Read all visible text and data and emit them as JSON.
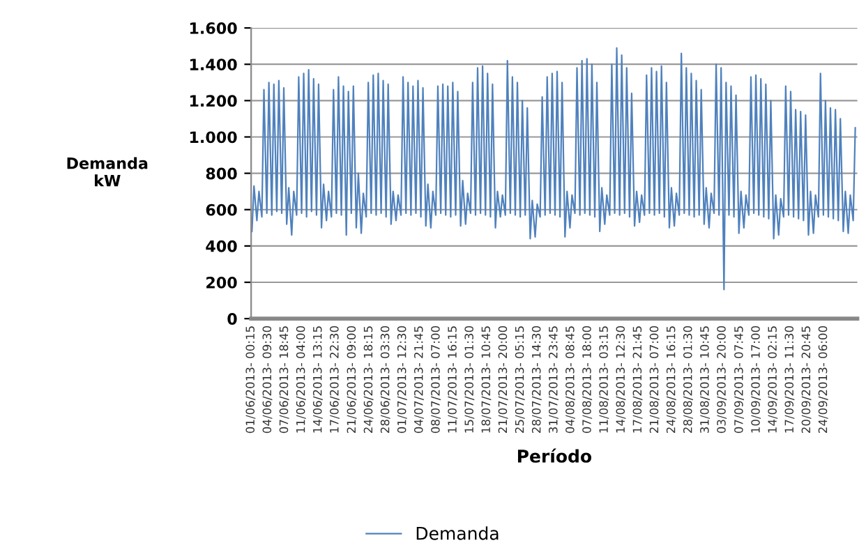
{
  "chart_data": {
    "type": "line",
    "xlabel": "Período",
    "ylabel": "Demanda\nkW",
    "xlim": [
      "2013-06-01T00:15",
      "2013-10-01T00:00"
    ],
    "ylim": [
      0,
      1600
    ],
    "yticks": [
      0,
      200,
      400,
      600,
      800,
      {
        "value": 1000,
        "label": "1.000"
      },
      {
        "value": 1200,
        "label": "1.200"
      },
      {
        "value": 1400,
        "label": "1.400"
      },
      {
        "value": 1600,
        "label": "1.600"
      }
    ],
    "xticks": [
      {
        "value": "2013-06-01T00:15",
        "label": "01/06/2013- 00:15"
      },
      {
        "value": "2013-06-04T09:30",
        "label": "04/06/2013- 09:30"
      },
      {
        "value": "2013-06-07T18:45",
        "label": "07/06/2013- 18:45"
      },
      {
        "value": "2013-06-11T04:00",
        "label": "11/06/2013- 04:00"
      },
      {
        "value": "2013-06-14T13:15",
        "label": "14/06/2013- 13:15"
      },
      {
        "value": "2013-06-17T22:30",
        "label": "17/06/2013- 22:30"
      },
      {
        "value": "2013-06-21T09:00",
        "label": "21/06/2013- 09:00"
      },
      {
        "value": "2013-06-24T18:15",
        "label": "24/06/2013- 18:15"
      },
      {
        "value": "2013-06-28T03:30",
        "label": "28/06/2013- 03:30"
      },
      {
        "value": "2013-07-01T12:30",
        "label": "01/07/2013- 12:30"
      },
      {
        "value": "2013-07-04T21:45",
        "label": "04/07/2013- 21:45"
      },
      {
        "value": "2013-07-08T07:00",
        "label": "08/07/2013- 07:00"
      },
      {
        "value": "2013-07-11T16:15",
        "label": "11/07/2013- 16:15"
      },
      {
        "value": "2013-07-15T01:30",
        "label": "15/07/2013- 01:30"
      },
      {
        "value": "2013-07-18T10:45",
        "label": "18/07/2013- 10:45"
      },
      {
        "value": "2013-07-21T20:00",
        "label": "21/07/2013- 20:00"
      },
      {
        "value": "2013-07-25T05:15",
        "label": "25/07/2013- 05:15"
      },
      {
        "value": "2013-07-28T14:30",
        "label": "28/07/2013- 14:30"
      },
      {
        "value": "2013-07-31T23:45",
        "label": "31/07/2013- 23:45"
      },
      {
        "value": "2013-08-04T08:45",
        "label": "04/08/2013- 08:45"
      },
      {
        "value": "2013-08-07T18:00",
        "label": "07/08/2013- 18:00"
      },
      {
        "value": "2013-08-11T03:15",
        "label": "11/08/2013- 03:15"
      },
      {
        "value": "2013-08-14T12:30",
        "label": "14/08/2013- 12:30"
      },
      {
        "value": "2013-08-17T21:45",
        "label": "17/08/2013- 21:45"
      },
      {
        "value": "2013-08-21T07:00",
        "label": "21/08/2013- 07:00"
      },
      {
        "value": "2013-08-24T16:15",
        "label": "24/08/2013- 16:15"
      },
      {
        "value": "2013-08-28T01:30",
        "label": "28/08/2013- 01:30"
      },
      {
        "value": "2013-08-31T10:45",
        "label": "31/08/2013- 10:45"
      },
      {
        "value": "2013-09-03T20:00",
        "label": "03/09/2013- 20:00"
      },
      {
        "value": "2013-09-07T07:45",
        "label": "07/09/2013- 07:45"
      },
      {
        "value": "2013-09-10T17:00",
        "label": "10/09/2013- 17:00"
      },
      {
        "value": "2013-09-14T02:15",
        "label": "14/09/2013- 02:15"
      },
      {
        "value": "2013-09-17T11:30",
        "label": "17/09/2013- 11:30"
      },
      {
        "value": "2013-09-20T20:45",
        "label": "20/09/2013- 20:45"
      },
      {
        "value": "2013-09-24T06:00",
        "label": "24/09/2013- 06:00"
      }
    ],
    "grid": "y",
    "legend": "bottom",
    "marker": "none",
    "line_style": "solid",
    "series": [
      {
        "name": "Demanda",
        "color": "#4f81bd",
        "x": [
          "2013-06-01T04:00",
          "2013-06-01T14:00",
          "2013-06-02T04:00",
          "2013-06-02T14:00",
          "2013-06-03T04:00",
          "2013-06-03T14:00",
          "2013-06-04T04:00",
          "2013-06-04T14:00",
          "2013-06-05T04:00",
          "2013-06-05T14:00",
          "2013-06-06T04:00",
          "2013-06-06T14:00",
          "2013-06-07T04:00",
          "2013-06-07T14:00",
          "2013-06-08T04:00",
          "2013-06-08T14:00",
          "2013-06-09T04:00",
          "2013-06-09T14:00",
          "2013-06-10T04:00",
          "2013-06-10T14:00",
          "2013-06-11T04:00",
          "2013-06-11T14:00",
          "2013-06-12T04:00",
          "2013-06-12T14:00",
          "2013-06-13T04:00",
          "2013-06-13T14:00",
          "2013-06-14T04:00",
          "2013-06-14T14:00",
          "2013-06-15T04:00",
          "2013-06-15T14:00",
          "2013-06-16T04:00",
          "2013-06-16T14:00",
          "2013-06-17T04:00",
          "2013-06-17T14:00",
          "2013-06-18T04:00",
          "2013-06-18T14:00",
          "2013-06-19T04:00",
          "2013-06-19T14:00",
          "2013-06-20T04:00",
          "2013-06-20T14:00",
          "2013-06-21T04:00",
          "2013-06-21T14:00",
          "2013-06-22T04:00",
          "2013-06-22T14:00",
          "2013-06-23T04:00",
          "2013-06-23T14:00",
          "2013-06-24T04:00",
          "2013-06-24T14:00",
          "2013-06-25T04:00",
          "2013-06-25T14:00",
          "2013-06-26T04:00",
          "2013-06-26T14:00",
          "2013-06-27T04:00",
          "2013-06-27T14:00",
          "2013-06-28T04:00",
          "2013-06-28T14:00",
          "2013-06-29T04:00",
          "2013-06-29T14:00",
          "2013-06-30T04:00",
          "2013-06-30T14:00",
          "2013-07-01T04:00",
          "2013-07-01T14:00",
          "2013-07-02T04:00",
          "2013-07-02T14:00",
          "2013-07-03T04:00",
          "2013-07-03T14:00",
          "2013-07-04T04:00",
          "2013-07-04T14:00",
          "2013-07-05T04:00",
          "2013-07-05T14:00",
          "2013-07-06T04:00",
          "2013-07-06T14:00",
          "2013-07-07T04:00",
          "2013-07-07T14:00",
          "2013-07-08T04:00",
          "2013-07-08T14:00",
          "2013-07-09T04:00",
          "2013-07-09T14:00",
          "2013-07-10T04:00",
          "2013-07-10T14:00",
          "2013-07-11T04:00",
          "2013-07-11T14:00",
          "2013-07-12T04:00",
          "2013-07-12T14:00",
          "2013-07-13T04:00",
          "2013-07-13T14:00",
          "2013-07-14T04:00",
          "2013-07-14T14:00",
          "2013-07-15T04:00",
          "2013-07-15T14:00",
          "2013-07-16T04:00",
          "2013-07-16T14:00",
          "2013-07-17T04:00",
          "2013-07-17T14:00",
          "2013-07-18T04:00",
          "2013-07-18T14:00",
          "2013-07-19T04:00",
          "2013-07-19T14:00",
          "2013-07-20T04:00",
          "2013-07-20T14:00",
          "2013-07-21T04:00",
          "2013-07-21T14:00",
          "2013-07-22T04:00",
          "2013-07-22T14:00",
          "2013-07-23T04:00",
          "2013-07-23T14:00",
          "2013-07-24T04:00",
          "2013-07-24T14:00",
          "2013-07-25T04:00",
          "2013-07-25T14:00",
          "2013-07-26T04:00",
          "2013-07-26T14:00",
          "2013-07-27T04:00",
          "2013-07-27T14:00",
          "2013-07-28T04:00",
          "2013-07-28T14:00",
          "2013-07-29T04:00",
          "2013-07-29T14:00",
          "2013-07-30T04:00",
          "2013-07-30T14:00",
          "2013-07-31T04:00",
          "2013-07-31T14:00",
          "2013-08-01T04:00",
          "2013-08-01T14:00",
          "2013-08-02T04:00",
          "2013-08-02T14:00",
          "2013-08-03T04:00",
          "2013-08-03T14:00",
          "2013-08-04T04:00",
          "2013-08-04T14:00",
          "2013-08-05T04:00",
          "2013-08-05T14:00",
          "2013-08-06T04:00",
          "2013-08-06T14:00",
          "2013-08-07T04:00",
          "2013-08-07T14:00",
          "2013-08-08T04:00",
          "2013-08-08T14:00",
          "2013-08-09T04:00",
          "2013-08-09T14:00",
          "2013-08-10T04:00",
          "2013-08-10T14:00",
          "2013-08-11T04:00",
          "2013-08-11T14:00",
          "2013-08-12T04:00",
          "2013-08-12T14:00",
          "2013-08-13T04:00",
          "2013-08-13T14:00",
          "2013-08-14T04:00",
          "2013-08-14T14:00",
          "2013-08-15T04:00",
          "2013-08-15T14:00",
          "2013-08-16T04:00",
          "2013-08-16T14:00",
          "2013-08-17T04:00",
          "2013-08-17T14:00",
          "2013-08-18T04:00",
          "2013-08-18T14:00",
          "2013-08-19T04:00",
          "2013-08-19T14:00",
          "2013-08-20T04:00",
          "2013-08-20T14:00",
          "2013-08-21T04:00",
          "2013-08-21T14:00",
          "2013-08-22T04:00",
          "2013-08-22T14:00",
          "2013-08-23T04:00",
          "2013-08-23T14:00",
          "2013-08-24T04:00",
          "2013-08-24T14:00",
          "2013-08-25T04:00",
          "2013-08-25T14:00",
          "2013-08-26T04:00",
          "2013-08-26T14:00",
          "2013-08-27T04:00",
          "2013-08-27T14:00",
          "2013-08-28T04:00",
          "2013-08-28T14:00",
          "2013-08-29T04:00",
          "2013-08-29T14:00",
          "2013-08-30T04:00",
          "2013-08-30T14:00",
          "2013-08-31T04:00",
          "2013-08-31T14:00",
          "2013-09-01T04:00",
          "2013-09-01T14:00",
          "2013-09-02T04:00",
          "2013-09-02T14:00",
          "2013-09-03T04:00",
          "2013-09-03T14:00",
          "2013-09-04T04:00",
          "2013-09-04T14:00",
          "2013-09-05T04:00",
          "2013-09-05T14:00",
          "2013-09-06T04:00",
          "2013-09-06T14:00",
          "2013-09-07T04:00",
          "2013-09-07T14:00",
          "2013-09-08T04:00",
          "2013-09-08T14:00",
          "2013-09-09T04:00",
          "2013-09-09T14:00",
          "2013-09-10T04:00",
          "2013-09-10T14:00",
          "2013-09-11T04:00",
          "2013-09-11T14:00",
          "2013-09-12T04:00",
          "2013-09-12T14:00",
          "2013-09-13T04:00",
          "2013-09-13T14:00",
          "2013-09-14T04:00",
          "2013-09-14T14:00",
          "2013-09-15T04:00",
          "2013-09-15T14:00",
          "2013-09-16T04:00",
          "2013-09-16T14:00",
          "2013-09-17T04:00",
          "2013-09-17T14:00",
          "2013-09-18T04:00",
          "2013-09-18T14:00",
          "2013-09-19T04:00",
          "2013-09-19T14:00",
          "2013-09-20T04:00",
          "2013-09-20T14:00",
          "2013-09-21T04:00",
          "2013-09-21T14:00",
          "2013-09-22T04:00",
          "2013-09-22T14:00",
          "2013-09-23T04:00",
          "2013-09-23T14:00",
          "2013-09-24T04:00",
          "2013-09-24T14:00",
          "2013-09-25T04:00",
          "2013-09-25T14:00",
          "2013-09-26T04:00",
          "2013-09-26T14:00",
          "2013-09-27T04:00",
          "2013-09-27T14:00",
          "2013-09-28T04:00",
          "2013-09-28T14:00",
          "2013-09-29T04:00",
          "2013-09-29T14:00",
          "2013-09-30T04:00",
          "2013-09-30T14:00"
        ],
        "values": [
          480,
          730,
          540,
          700,
          560,
          1260,
          580,
          1300,
          570,
          1290,
          590,
          1310,
          580,
          1270,
          520,
          720,
          460,
          700,
          570,
          1330,
          580,
          1350,
          560,
          1370,
          590,
          1320,
          570,
          1290,
          500,
          740,
          540,
          700,
          560,
          1260,
          580,
          1330,
          570,
          1280,
          460,
          1250,
          580,
          1280,
          500,
          800,
          470,
          690,
          560,
          1300,
          580,
          1340,
          570,
          1350,
          580,
          1310,
          560,
          1290,
          520,
          700,
          540,
          680,
          570,
          1330,
          580,
          1300,
          570,
          1280,
          580,
          1310,
          560,
          1270,
          510,
          740,
          500,
          700,
          570,
          1280,
          580,
          1290,
          570,
          1280,
          560,
          1300,
          570,
          1250,
          510,
          760,
          520,
          690,
          580,
          1300,
          570,
          1380,
          580,
          1390,
          570,
          1350,
          560,
          1290,
          500,
          700,
          560,
          680,
          570,
          1420,
          580,
          1330,
          570,
          1300,
          560,
          1200,
          570,
          1160,
          440,
          650,
          450,
          630,
          560,
          1220,
          570,
          1330,
          580,
          1350,
          570,
          1360,
          560,
          1300,
          450,
          700,
          500,
          680,
          580,
          1380,
          570,
          1420,
          580,
          1430,
          570,
          1400,
          560,
          1300,
          480,
          720,
          520,
          680,
          570,
          1400,
          580,
          1490,
          570,
          1450,
          580,
          1380,
          560,
          1240,
          510,
          700,
          530,
          680,
          570,
          1340,
          580,
          1380,
          570,
          1360,
          580,
          1390,
          560,
          1300,
          500,
          720,
          510,
          690,
          570,
          1460,
          580,
          1380,
          570,
          1350,
          560,
          1310,
          570,
          1260,
          520,
          720,
          500,
          690,
          580,
          1400,
          570,
          1380,
          160,
          1300,
          570,
          1280,
          560,
          1230,
          470,
          700,
          500,
          680,
          570,
          1330,
          580,
          1340,
          570,
          1320,
          560,
          1290,
          550,
          1200,
          440,
          680,
          460,
          660,
          560,
          1280,
          570,
          1250,
          560,
          1150,
          550,
          1140,
          540,
          1120,
          460,
          700,
          470,
          680,
          560,
          1350,
          570,
          1200,
          560,
          1160,
          550,
          1150,
          540,
          1100,
          480,
          700,
          470,
          680,
          540,
          1050
        ]
      }
    ]
  }
}
